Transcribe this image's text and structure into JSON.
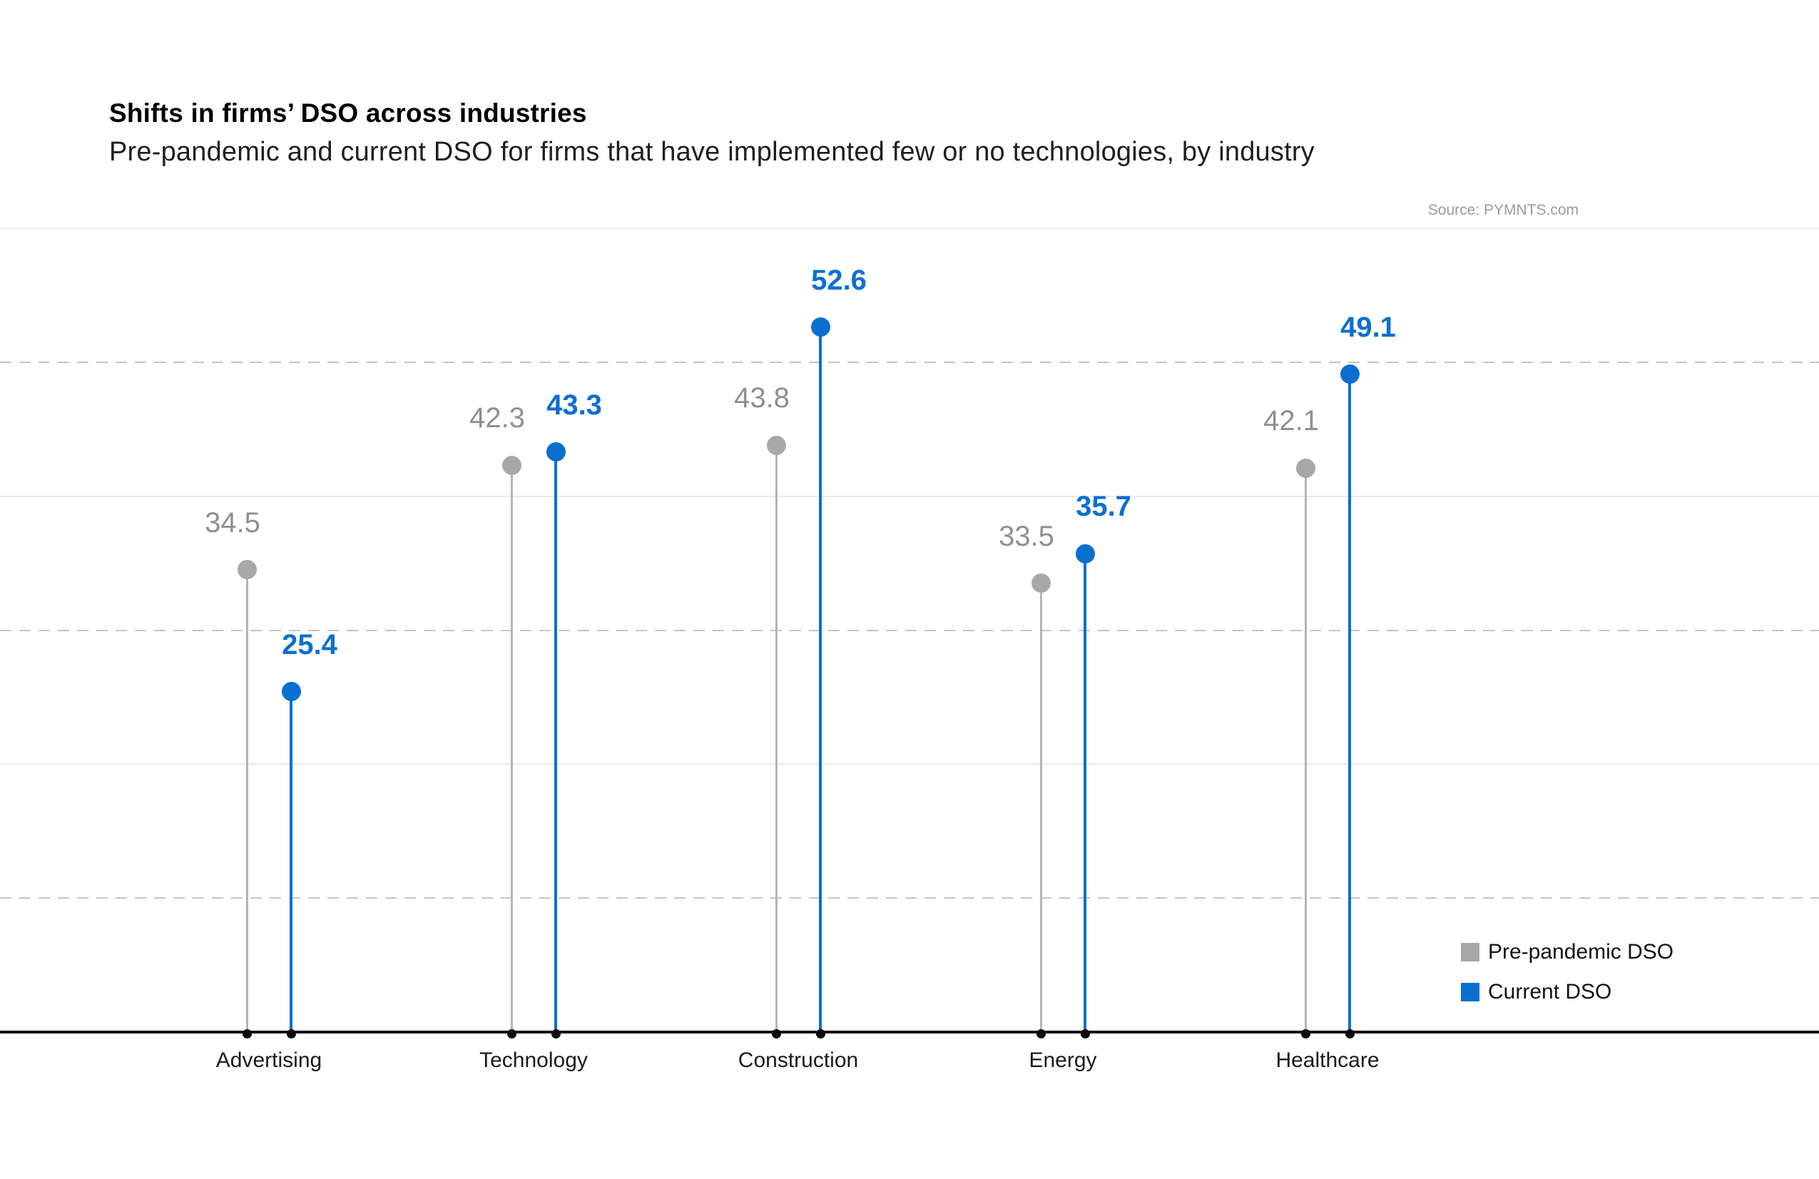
{
  "header": {
    "title": "Shifts in firms’ DSO across industries",
    "subtitle": "Pre-pandemic and current DSO for firms that have implemented few or no technologies, by industry",
    "source": "Source: PYMNTS.com"
  },
  "legend": {
    "items": [
      {
        "label": "Pre-pandemic DSO",
        "color": "#a8a8a8"
      },
      {
        "label": "Current DSO",
        "color": "#0b6fd2"
      }
    ]
  },
  "chart_data": {
    "type": "lollipop",
    "title": "Shifts in firms’ DSO across industries",
    "subtitle": "Pre-pandemic and current DSO for firms that have implemented few or no technologies, by industry",
    "categories": [
      "Advertising",
      "Technology",
      "Construction",
      "Energy",
      "Healthcare"
    ],
    "series": [
      {
        "name": "Pre-pandemic DSO",
        "color": "#a8a8a8",
        "stem_color": "#b5b5b5",
        "values": [
          34.5,
          42.3,
          43.8,
          33.5,
          42.1
        ]
      },
      {
        "name": "Current DSO",
        "color": "#0b6fd2",
        "stem_color": "#0b6fd2",
        "values": [
          25.4,
          43.3,
          52.6,
          35.7,
          49.1
        ]
      }
    ],
    "xlabel": "",
    "ylabel": "",
    "ylim": [
      0,
      60
    ],
    "grid": {
      "solid_ticks": [
        20,
        40,
        60
      ],
      "dashed_ticks": [
        10,
        30,
        50
      ]
    },
    "legend_position": "bottom-right",
    "value_labels": "shown above each point, one decimal"
  }
}
